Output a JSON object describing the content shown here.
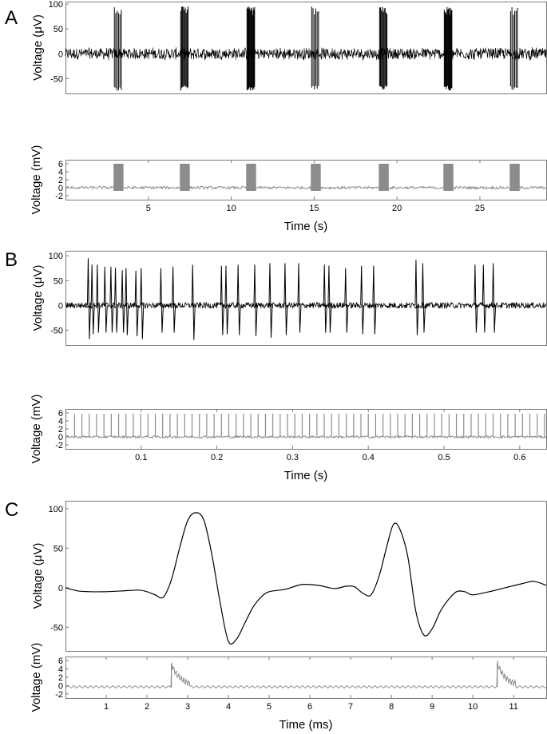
{
  "colors": {
    "black_trace": "#000000",
    "gray_trace": "#8c8c8c"
  },
  "panels": [
    {
      "letter": "A",
      "xlabel": "Time (s)"
    },
    {
      "letter": "B",
      "xlabel": "Time (s)"
    },
    {
      "letter": "C",
      "xlabel": "Time (ms)"
    }
  ],
  "chart_data": [
    {
      "panel": "A",
      "type": "line",
      "title": "",
      "xlabel": "Time (s)",
      "xlim": [
        0,
        29
      ],
      "xticks": [
        5,
        10,
        15,
        20,
        25
      ],
      "top_plot": {
        "ylabel": "Voltage (μV)",
        "ylim": [
          -80,
          105
        ],
        "yticks": [
          100,
          50,
          0,
          -50
        ],
        "series": [
          {
            "color": "#000000",
            "noise_band_uV": 12,
            "burst_times_s": [
              3.2,
              7.2,
              11.2,
              15.1,
              19.2,
              23.1,
              27.1
            ],
            "burst_width_s": 0.5,
            "spike_peak_uV": 95,
            "spike_trough_uV": -75
          }
        ]
      },
      "bottom_plot": {
        "ylabel": "Voltage (mV)",
        "ylim": [
          -3,
          7
        ],
        "yticks": [
          6,
          4,
          2,
          0,
          -2
        ],
        "series": [
          {
            "color": "#8c8c8c",
            "baseline_mV": 0,
            "pulse_times_s": [
              3.2,
              7.2,
              11.2,
              15.1,
              19.2,
              23.1,
              27.1
            ],
            "pulse_width_s": 0.6,
            "pulse_amplitude_mV": 6
          }
        ]
      }
    },
    {
      "panel": "B",
      "type": "line",
      "title": "",
      "xlabel": "Time (s)",
      "xlim": [
        0,
        0.635
      ],
      "xticks": [
        0.1,
        0.2,
        0.3,
        0.4,
        0.5,
        0.6
      ],
      "top_plot": {
        "ylabel": "Voltage (μV)",
        "ylim": [
          -80,
          110
        ],
        "yticks": [
          100,
          50,
          0,
          -50
        ],
        "series": [
          {
            "color": "#000000",
            "spikes": [
              {
                "t": 0.03,
                "peak": 95,
                "trough": -68
              },
              {
                "t": 0.035,
                "peak": 82,
                "trough": -58
              },
              {
                "t": 0.042,
                "peak": 82,
                "trough": -55
              },
              {
                "t": 0.052,
                "peak": 78,
                "trough": -55
              },
              {
                "t": 0.06,
                "peak": 78,
                "trough": -55
              },
              {
                "t": 0.066,
                "peak": 76,
                "trough": -55
              },
              {
                "t": 0.075,
                "peak": 71,
                "trough": -55
              },
              {
                "t": 0.08,
                "peak": 75,
                "trough": -60
              },
              {
                "t": 0.093,
                "peak": 70,
                "trough": -62
              },
              {
                "t": 0.1,
                "peak": 75,
                "trough": -68
              },
              {
                "t": 0.126,
                "peak": 75,
                "trough": -55
              },
              {
                "t": 0.142,
                "peak": 78,
                "trough": -55
              },
              {
                "t": 0.168,
                "peak": 82,
                "trough": -70
              },
              {
                "t": 0.206,
                "peak": 80,
                "trough": -60
              },
              {
                "t": 0.212,
                "peak": 80,
                "trough": -58
              },
              {
                "t": 0.228,
                "peak": 82,
                "trough": -60
              },
              {
                "t": 0.25,
                "peak": 82,
                "trough": -62
              },
              {
                "t": 0.27,
                "peak": 85,
                "trough": -65
              },
              {
                "t": 0.29,
                "peak": 85,
                "trough": -60
              },
              {
                "t": 0.308,
                "peak": 85,
                "trough": -55
              },
              {
                "t": 0.342,
                "peak": 82,
                "trough": -55
              },
              {
                "t": 0.348,
                "peak": 80,
                "trough": -55
              },
              {
                "t": 0.37,
                "peak": 75,
                "trough": -55
              },
              {
                "t": 0.391,
                "peak": 80,
                "trough": -58
              },
              {
                "t": 0.407,
                "peak": 80,
                "trough": -58
              },
              {
                "t": 0.463,
                "peak": 92,
                "trough": -60
              },
              {
                "t": 0.472,
                "peak": 85,
                "trough": -55
              },
              {
                "t": 0.541,
                "peak": 82,
                "trough": -55
              },
              {
                "t": 0.552,
                "peak": 82,
                "trough": -55
              },
              {
                "t": 0.565,
                "peak": 85,
                "trough": -55
              }
            ]
          }
        ]
      },
      "bottom_plot": {
        "ylabel": "Voltage (mV)",
        "ylim": [
          -3,
          7
        ],
        "yticks": [
          6,
          4,
          2,
          0,
          -2
        ],
        "series": [
          {
            "color": "#8c8c8c",
            "baseline_mV": 0,
            "pulse_start_s": 0.012,
            "pulse_interval_s": 0.0097,
            "pulse_amplitude_mV": 5.8
          }
        ]
      }
    },
    {
      "panel": "C",
      "type": "line",
      "title": "",
      "xlabel": "Time (ms)",
      "xlim": [
        0,
        11.8
      ],
      "xticks": [
        1,
        2,
        3,
        4,
        5,
        6,
        7,
        8,
        9,
        10,
        11
      ],
      "top_plot": {
        "ylabel": "Voltage (μV)",
        "ylim": [
          -80,
          110
        ],
        "yticks": [
          100,
          50,
          0,
          -50
        ],
        "series": [
          {
            "color": "#000000",
            "x": [
              0,
              0.3,
              0.6,
              1.0,
              1.4,
              1.8,
              2.0,
              2.2,
              2.4,
              2.6,
              2.8,
              3.0,
              3.2,
              3.4,
              3.6,
              3.8,
              4.0,
              4.2,
              4.4,
              4.6,
              4.8,
              5.0,
              5.4,
              5.8,
              6.2,
              6.6,
              6.9,
              7.1,
              7.3,
              7.5,
              7.7,
              7.9,
              8.05,
              8.2,
              8.4,
              8.6,
              8.8,
              9.0,
              9.2,
              9.4,
              9.6,
              9.8,
              10.0,
              10.4,
              10.8,
              11.2,
              11.5,
              11.8
            ],
            "y": [
              0,
              -4,
              -5,
              -5,
              -4,
              -3,
              -5,
              -9,
              -12,
              10,
              50,
              85,
              95,
              85,
              40,
              -20,
              -68,
              -65,
              -45,
              -25,
              -12,
              -5,
              -2,
              4,
              3,
              -1,
              2,
              1,
              -7,
              -9,
              15,
              55,
              80,
              75,
              40,
              -30,
              -60,
              -52,
              -30,
              -15,
              -5,
              -5,
              -9,
              -5,
              0,
              5,
              8,
              3
            ]
          }
        ]
      },
      "bottom_plot": {
        "ylabel": "Voltage (mV)",
        "ylim": [
          -3,
          7
        ],
        "yticks": [
          6,
          4,
          2,
          0,
          -2
        ],
        "series": [
          {
            "color": "#8c8c8c",
            "baseline_mV": -0.3,
            "pulse_times_ms": [
              2.6,
              10.6
            ],
            "pulse_peak_mV": 5.3
          }
        ]
      }
    }
  ]
}
